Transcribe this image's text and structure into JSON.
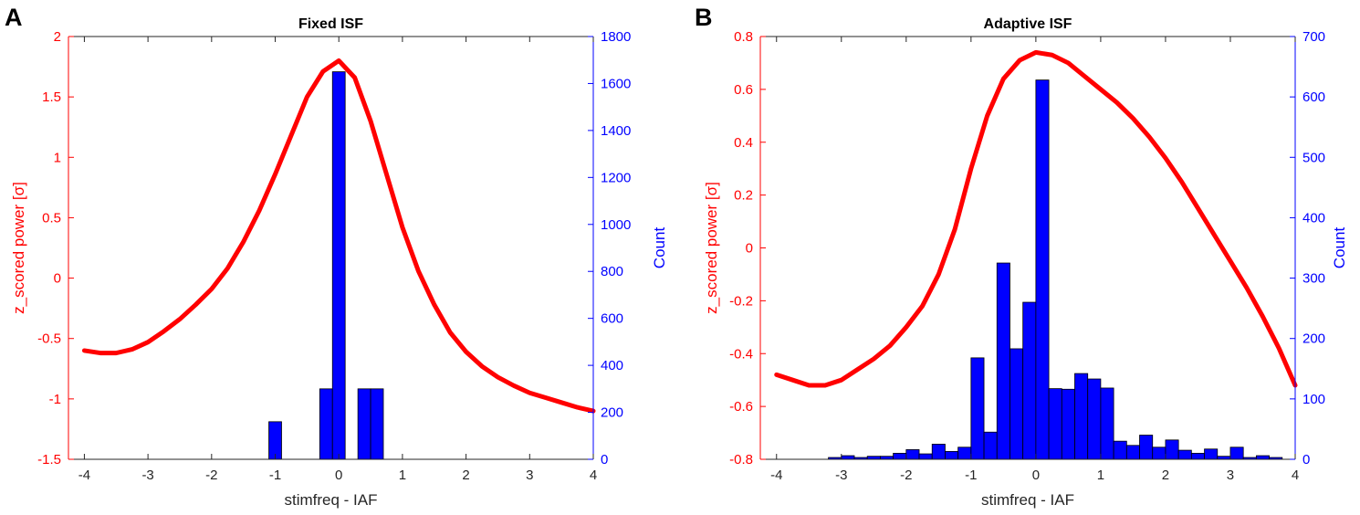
{
  "figure": {
    "panels": [
      {
        "letter": "A",
        "title": "Fixed ISF"
      },
      {
        "letter": "B",
        "title": "Adaptive ISF"
      }
    ]
  },
  "colors": {
    "left_axis": "#ff0000",
    "right_axis": "#0000ff",
    "curve": "#ff0000",
    "bars": "#0000ff",
    "bar_edge": "#000000",
    "axis": "#262626"
  },
  "chart_data": [
    {
      "type": "bar",
      "panel": "A",
      "title": "Fixed ISF",
      "xlabel": "stimfreq - IAF",
      "ylabel_left": "z_scored power [σ]",
      "ylabel_right": "Count",
      "xlim": [
        -4.25,
        4
      ],
      "xticks": [
        -4,
        -3,
        -2,
        -1,
        0,
        1,
        2,
        3,
        4
      ],
      "ylim_left": [
        -1.5,
        2
      ],
      "yticks_left": [
        -1.5,
        -1,
        -0.5,
        0,
        0.5,
        1,
        1.5,
        2
      ],
      "ylim_right": [
        0,
        1800
      ],
      "yticks_right": [
        0,
        200,
        400,
        600,
        800,
        1000,
        1200,
        1400,
        1600,
        1800
      ],
      "grid": false,
      "curve": {
        "x": [
          -4,
          -3.75,
          -3.5,
          -3.25,
          -3,
          -2.75,
          -2.5,
          -2.25,
          -2,
          -1.75,
          -1.5,
          -1.25,
          -1,
          -0.75,
          -0.5,
          -0.25,
          0,
          0.25,
          0.5,
          0.75,
          1,
          1.25,
          1.5,
          1.75,
          2,
          2.25,
          2.5,
          2.75,
          3,
          3.25,
          3.5,
          3.75,
          4
        ],
        "y": [
          -0.6,
          -0.62,
          -0.62,
          -0.59,
          -0.53,
          -0.44,
          -0.34,
          -0.22,
          -0.09,
          0.08,
          0.3,
          0.56,
          0.86,
          1.18,
          1.5,
          1.71,
          1.8,
          1.66,
          1.3,
          0.86,
          0.42,
          0.06,
          -0.22,
          -0.45,
          -0.61,
          -0.73,
          -0.82,
          -0.89,
          -0.95,
          -0.99,
          -1.03,
          -1.07,
          -1.1
        ]
      },
      "bars": {
        "width": 0.2,
        "centers": [
          -1,
          -0.2,
          0,
          0.4,
          0.6
        ],
        "counts": [
          160,
          300,
          1650,
          300,
          300
        ]
      }
    },
    {
      "type": "bar",
      "panel": "B",
      "title": "Adaptive ISF",
      "xlabel": "stimfreq - IAF",
      "ylabel_left": "z_scored power [σ]",
      "ylabel_right": "Count",
      "xlim": [
        -4.25,
        4
      ],
      "xticks": [
        -4,
        -3,
        -2,
        -1,
        0,
        1,
        2,
        3,
        4
      ],
      "ylim_left": [
        -0.8,
        0.8
      ],
      "yticks_left": [
        -0.8,
        -0.6,
        -0.4,
        -0.2,
        0,
        0.2,
        0.4,
        0.6,
        0.8
      ],
      "ylim_right": [
        0,
        700
      ],
      "yticks_right": [
        0,
        100,
        200,
        300,
        400,
        500,
        600,
        700
      ],
      "grid": false,
      "curve": {
        "x": [
          -4,
          -3.75,
          -3.5,
          -3.25,
          -3,
          -2.75,
          -2.5,
          -2.25,
          -2,
          -1.75,
          -1.5,
          -1.25,
          -1,
          -0.75,
          -0.5,
          -0.25,
          0,
          0.25,
          0.5,
          0.75,
          1,
          1.25,
          1.5,
          1.75,
          2,
          2.25,
          2.5,
          2.75,
          3,
          3.25,
          3.5,
          3.75,
          4
        ],
        "y": [
          -0.48,
          -0.5,
          -0.52,
          -0.52,
          -0.5,
          -0.46,
          -0.42,
          -0.37,
          -0.3,
          -0.22,
          -0.1,
          0.07,
          0.3,
          0.5,
          0.64,
          0.71,
          0.74,
          0.73,
          0.7,
          0.65,
          0.6,
          0.55,
          0.49,
          0.42,
          0.34,
          0.25,
          0.15,
          0.05,
          -0.05,
          -0.15,
          -0.26,
          -0.38,
          -0.52
        ]
      },
      "bars": {
        "width": 0.2,
        "centers": [
          -3.1,
          -2.9,
          -2.7,
          -2.5,
          -2.3,
          -2.1,
          -1.9,
          -1.7,
          -1.5,
          -1.3,
          -1.1,
          -0.9,
          -0.7,
          -0.5,
          -0.3,
          -0.1,
          0.1,
          0.3,
          0.5,
          0.7,
          0.9,
          1.1,
          1.3,
          1.5,
          1.7,
          1.9,
          2.1,
          2.3,
          2.5,
          2.7,
          2.9,
          3.1,
          3.3,
          3.5,
          3.7
        ],
        "counts": [
          3,
          6,
          3,
          5,
          5,
          10,
          16,
          9,
          25,
          13,
          20,
          168,
          45,
          325,
          183,
          260,
          628,
          117,
          116,
          142,
          133,
          118,
          30,
          23,
          40,
          20,
          32,
          15,
          10,
          17,
          5,
          20,
          3,
          6,
          3
        ]
      }
    }
  ]
}
